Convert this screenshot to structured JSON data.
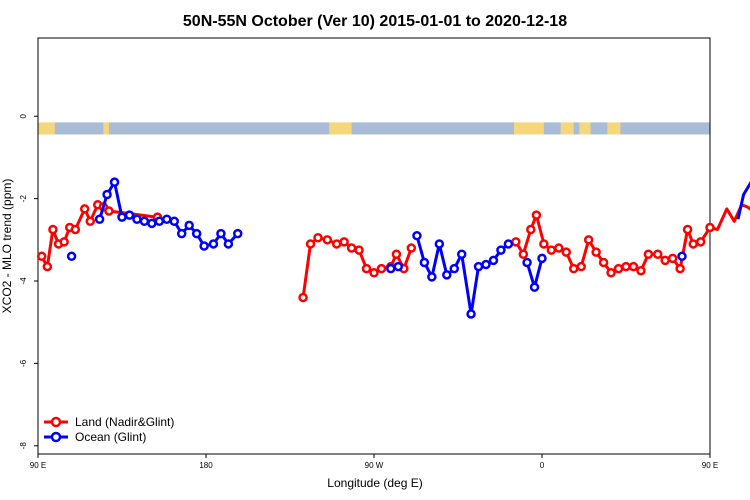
{
  "chart_data": {
    "type": "line",
    "title": "50N-55N October (Ver 10)   2015-01-01 to 2020-12-18",
    "xlabel": "Longitude (deg E)",
    "ylabel": "XCO2 - MLO trend (ppm)",
    "xlim": [
      90,
      450
    ],
    "ylim": [
      -8.2,
      1.9
    ],
    "x_ticks": [
      {
        "value": 90,
        "label": "90 E"
      },
      {
        "value": 180,
        "label": "180"
      },
      {
        "value": 270,
        "label": "90 W"
      },
      {
        "value": 360,
        "label": "0"
      },
      {
        "value": 450,
        "label": "90 E"
      },
      {
        "value": 540,
        "label": "180"
      }
    ],
    "y_ticks": [
      {
        "value": 0,
        "label": "0"
      },
      {
        "value": -2,
        "label": "-2"
      },
      {
        "value": -4,
        "label": "-4"
      },
      {
        "value": -6,
        "label": "-6"
      },
      {
        "value": -8,
        "label": "-8"
      }
    ],
    "legend_position": "bottom-left",
    "land_sea_band": {
      "y": -0.15,
      "land_color": "#f5d67a",
      "sea_color": "#a8bcd8"
    },
    "series": [
      {
        "name": "Land (Nadir&Glint)",
        "color": "#ff0000",
        "segments": [
          [
            [
              92,
              -3.4
            ],
            [
              95,
              -3.65
            ],
            [
              98,
              -2.75
            ],
            [
              101,
              -3.1
            ],
            [
              104,
              -3.05
            ],
            [
              107,
              -2.7
            ],
            [
              110,
              -2.75
            ],
            [
              115,
              -2.25
            ],
            [
              118,
              -2.55
            ],
            [
              122,
              -2.15
            ],
            [
              125,
              -2.2
            ],
            [
              128,
              -2.3
            ],
            [
              154,
              -2.45
            ]
          ],
          [
            [
              232,
              -4.4
            ],
            [
              236,
              -3.1
            ],
            [
              240,
              -2.95
            ],
            [
              245,
              -3.0
            ],
            [
              250,
              -3.1
            ],
            [
              254,
              -3.05
            ],
            [
              258,
              -3.2
            ],
            [
              262,
              -3.25
            ],
            [
              266,
              -3.7
            ],
            [
              270,
              -3.8
            ],
            [
              274,
              -3.7
            ],
            [
              279,
              -3.65
            ],
            [
              282,
              -3.35
            ],
            [
              286,
              -3.7
            ],
            [
              290,
              -3.2
            ]
          ],
          [
            [
              346,
              -3.05
            ],
            [
              350,
              -3.35
            ],
            [
              354,
              -2.75
            ],
            [
              357,
              -2.4
            ],
            [
              361,
              -3.1
            ],
            [
              365,
              -3.25
            ],
            [
              369,
              -3.2
            ],
            [
              373,
              -3.3
            ],
            [
              377,
              -3.7
            ],
            [
              381,
              -3.65
            ],
            [
              385,
              -3.0
            ],
            [
              389,
              -3.3
            ],
            [
              393,
              -3.55
            ],
            [
              397,
              -3.8
            ],
            [
              401,
              -3.7
            ],
            [
              405,
              -3.65
            ],
            [
              409,
              -3.65
            ],
            [
              413,
              -3.75
            ],
            [
              417,
              -3.35
            ],
            [
              422,
              -3.35
            ],
            [
              426,
              -3.5
            ],
            [
              430,
              -3.45
            ],
            [
              434,
              -3.7
            ],
            [
              438,
              -2.75
            ],
            [
              441,
              -3.1
            ],
            [
              445,
              -3.05
            ],
            [
              450,
              -2.7
            ],
            [
              454,
              -2.75
            ],
            [
              459,
              -2.25
            ],
            [
              463,
              -2.55
            ],
            [
              467,
              -2.15
            ],
            [
              470,
              -2.2
            ],
            [
              473,
              -2.3
            ],
            [
              500,
              -2.45
            ]
          ]
        ]
      },
      {
        "name": "Ocean (Glint)",
        "color": "#0000ff",
        "segments": [
          [
            [
              108,
              -3.4
            ]
          ],
          [
            [
              123,
              -2.5
            ],
            [
              127,
              -1.9
            ],
            [
              131,
              -1.6
            ],
            [
              135,
              -2.45
            ],
            [
              139,
              -2.4
            ],
            [
              143,
              -2.5
            ],
            [
              147,
              -2.55
            ],
            [
              151,
              -2.6
            ],
            [
              155,
              -2.55
            ],
            [
              159,
              -2.5
            ],
            [
              163,
              -2.55
            ],
            [
              167,
              -2.85
            ],
            [
              171,
              -2.65
            ],
            [
              175,
              -2.85
            ],
            [
              179,
              -3.15
            ],
            [
              184,
              -3.1
            ],
            [
              188,
              -2.85
            ],
            [
              192,
              -3.1
            ],
            [
              197,
              -2.85
            ]
          ],
          [
            [
              279,
              -3.7
            ],
            [
              283,
              -3.65
            ]
          ],
          [
            [
              293,
              -2.9
            ],
            [
              297,
              -3.55
            ],
            [
              301,
              -3.9
            ],
            [
              305,
              -3.1
            ],
            [
              309,
              -3.85
            ],
            [
              313,
              -3.7
            ],
            [
              317,
              -3.35
            ],
            [
              322,
              -4.8
            ],
            [
              326,
              -3.65
            ],
            [
              330,
              -3.6
            ],
            [
              334,
              -3.5
            ],
            [
              338,
              -3.25
            ],
            [
              342,
              -3.1
            ]
          ],
          [
            [
              352,
              -3.55
            ],
            [
              356,
              -4.15
            ],
            [
              360,
              -3.45
            ]
          ],
          [
            [
              435,
              -3.4
            ]
          ],
          [
            [
              465,
              -2.5
            ],
            [
              468,
              -1.9
            ],
            [
              472,
              -1.6
            ],
            [
              475,
              -2.45
            ],
            [
              480,
              -2.4
            ],
            [
              484,
              -2.5
            ],
            [
              488,
              -2.55
            ],
            [
              492,
              -2.6
            ]
          ]
        ]
      }
    ]
  }
}
